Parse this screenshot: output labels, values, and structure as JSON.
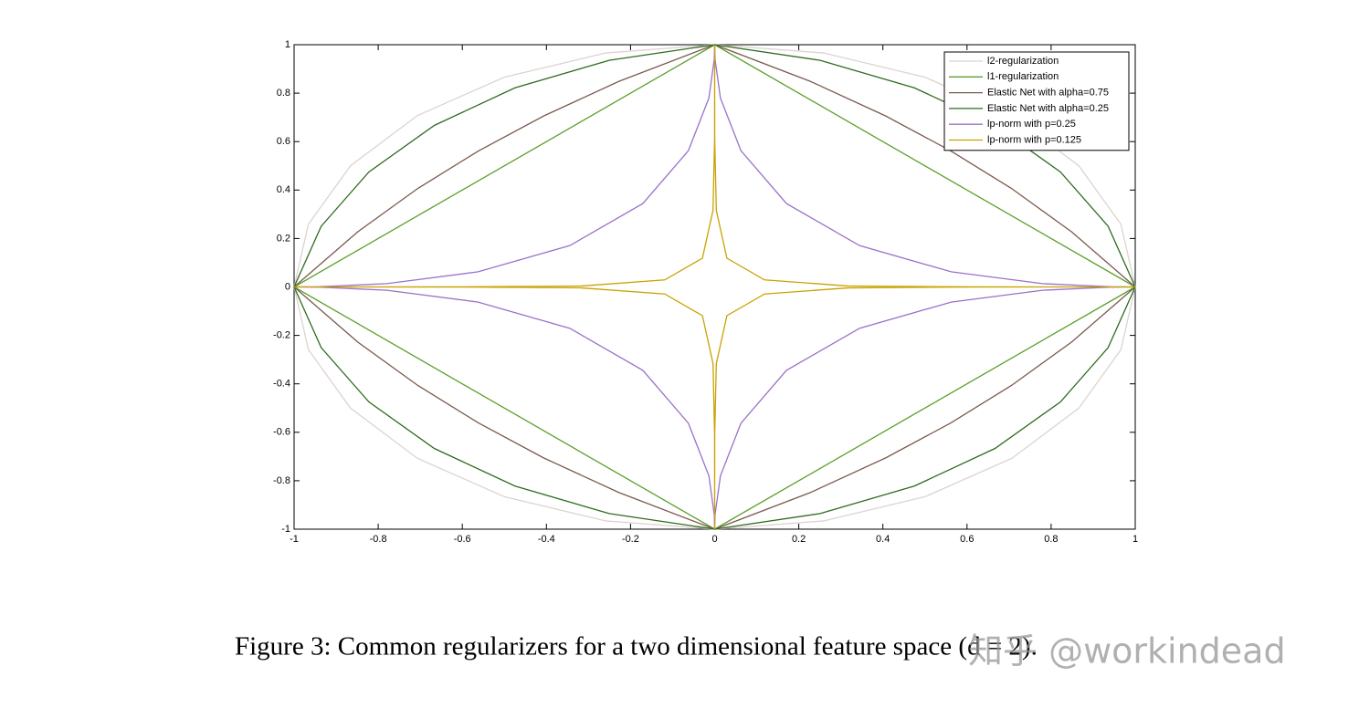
{
  "chart_data": {
    "type": "line",
    "xlim": [
      -1,
      1
    ],
    "ylim": [
      -1,
      1
    ],
    "xticks": [
      -1,
      -0.8,
      -0.6,
      -0.4,
      -0.2,
      0,
      0.2,
      0.4,
      0.6,
      0.8,
      1
    ],
    "yticks": [
      -1,
      -0.8,
      -0.6,
      -0.4,
      -0.2,
      0,
      0.2,
      0.4,
      0.6,
      0.8,
      1
    ],
    "legend": "upper right",
    "series": [
      {
        "name": "l2-regularization",
        "color": "#ddd3cf",
        "x": [
          1,
          0.9659,
          0.866,
          0.7071,
          0.5,
          0.2588,
          0,
          -0.2588,
          -0.5,
          -0.7071,
          -0.866,
          -0.9659,
          -1,
          -0.9659,
          -0.866,
          -0.7071,
          -0.5,
          -0.2588,
          0,
          0.2588,
          0.5,
          0.7071,
          0.866,
          0.9659,
          1
        ],
        "y": [
          0,
          0.2588,
          0.5,
          0.7071,
          0.866,
          0.9659,
          1,
          0.9659,
          0.866,
          0.7071,
          0.5,
          0.2588,
          0,
          -0.2588,
          -0.5,
          -0.7071,
          -0.866,
          -0.9659,
          -1,
          -0.9659,
          -0.866,
          -0.7071,
          -0.5,
          -0.2588,
          0
        ]
      },
      {
        "name": "l1-regularization",
        "color": "#5aa02c",
        "x": [
          1,
          0,
          -1,
          0,
          1
        ],
        "y": [
          0,
          1,
          0,
          -1,
          0
        ]
      },
      {
        "name": "Elastic Net with alpha=0.75",
        "color": "#7a5a4e",
        "x": [
          1,
          0.8488,
          0.7053,
          0.5615,
          0.4072,
          0.2274,
          0,
          -0.2274,
          -0.4072,
          -0.5615,
          -0.7053,
          -0.8488,
          -1,
          -0.8488,
          -0.7053,
          -0.5615,
          -0.4072,
          -0.2274,
          0,
          0.2274,
          0.4072,
          0.5615,
          0.7053,
          0.8488,
          1
        ],
        "y": [
          0,
          0.2274,
          0.4072,
          0.5615,
          0.7053,
          0.8488,
          1,
          0.8488,
          0.7053,
          0.5615,
          0.4072,
          0.2274,
          0,
          -0.2274,
          -0.4072,
          -0.5615,
          -0.7053,
          -0.8488,
          -1,
          -0.8488,
          -0.7053,
          -0.5615,
          -0.4072,
          -0.2274,
          0
        ]
      },
      {
        "name": "Elastic Net with alpha=0.25",
        "color": "#2f6b1f",
        "x": [
          1,
          0.9355,
          0.8221,
          0.6667,
          0.4747,
          0.2507,
          0,
          -0.2507,
          -0.4747,
          -0.6667,
          -0.8221,
          -0.9355,
          -1,
          -0.9355,
          -0.8221,
          -0.6667,
          -0.4747,
          -0.2507,
          0,
          0.2507,
          0.4747,
          0.6667,
          0.8221,
          0.9355,
          1
        ],
        "y": [
          0,
          0.2507,
          0.4747,
          0.6667,
          0.8221,
          0.9355,
          1,
          0.9355,
          0.8221,
          0.6667,
          0.4747,
          0.2507,
          0,
          -0.2507,
          -0.4747,
          -0.6667,
          -0.8221,
          -0.9355,
          -1,
          -0.9355,
          -0.8221,
          -0.6667,
          -0.4747,
          -0.2507,
          0
        ]
      },
      {
        "name": "lp-norm with p=0.25",
        "color": "#9a72c8",
        "x": [
          1,
          0.9406,
          0.7797,
          0.5625,
          0.3444,
          0.1707,
          0.0625,
          0.0137,
          0.0009,
          0,
          -0.0009,
          -0.0137,
          -0.0625,
          -0.1707,
          -0.3444,
          -0.5625,
          -0.7797,
          -0.9406,
          -1,
          -0.9406,
          -0.7797,
          -0.5625,
          -0.3444,
          -0.1707,
          -0.0625,
          -0.0137,
          -0.0009,
          0,
          0.0009,
          0.0137,
          0.0625,
          0.1707,
          0.3444,
          0.5625,
          0.7797,
          0.9406,
          1
        ],
        "y": [
          0,
          0.0009,
          0.0137,
          0.0625,
          0.1707,
          0.3444,
          0.5625,
          0.7797,
          0.9406,
          1,
          0.9406,
          0.7797,
          0.5625,
          0.3444,
          0.1707,
          0.0625,
          0.0137,
          0.0009,
          0,
          -0.0009,
          -0.0137,
          -0.0625,
          -0.1707,
          -0.3444,
          -0.5625,
          -0.7797,
          -0.9406,
          -1,
          -0.9406,
          -0.7797,
          -0.5625,
          -0.3444,
          -0.1707,
          -0.0625,
          -0.0137,
          -0.0009,
          0
        ]
      },
      {
        "name": "lp-norm with p=0.125",
        "color": "#c9a200",
        "x": [
          1,
          0.8847,
          0.608,
          0.3164,
          0.1186,
          0.0291,
          0.0039,
          0.0002,
          0,
          0,
          0,
          -0.0002,
          -0.0039,
          -0.0291,
          -0.1186,
          -0.3164,
          -0.608,
          -0.8847,
          -1,
          -0.8847,
          -0.608,
          -0.3164,
          -0.1186,
          -0.0291,
          -0.0039,
          -0.0002,
          0,
          0,
          0,
          0.0002,
          0.0039,
          0.0291,
          0.1186,
          0.3164,
          0.608,
          0.8847,
          1
        ],
        "y": [
          0,
          0,
          0.0002,
          0.0039,
          0.0291,
          0.1186,
          0.3164,
          0.608,
          0.8847,
          1,
          0.8847,
          0.608,
          0.3164,
          0.1186,
          0.0291,
          0.0039,
          0.0002,
          0,
          0,
          0,
          -0.0002,
          -0.0039,
          -0.0291,
          -0.1186,
          -0.3164,
          -0.608,
          -0.8847,
          -1,
          -0.8847,
          -0.608,
          -0.3164,
          -0.1186,
          -0.0291,
          -0.0039,
          -0.0002,
          0,
          0
        ]
      }
    ]
  },
  "caption": "Figure 3: Common regularizers for a two dimensional feature space (d = 2).",
  "watermark": "知乎 @workindead"
}
